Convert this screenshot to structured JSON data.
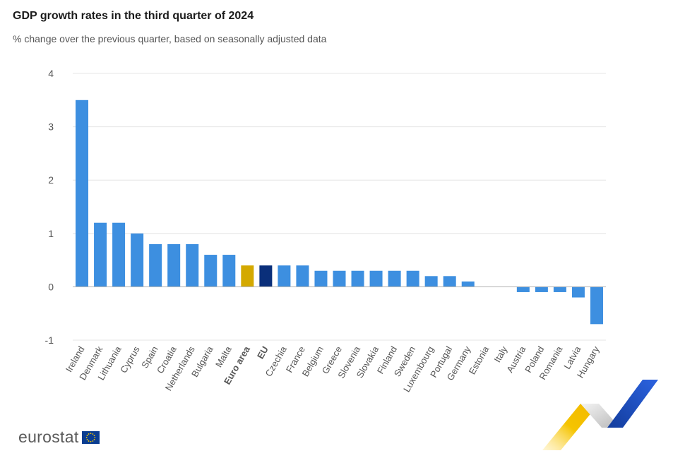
{
  "header": {
    "title": "GDP growth rates in the third quarter of 2024",
    "subtitle": "% change over the previous quarter, based on seasonally adjusted data"
  },
  "logo": {
    "text": "eurostat",
    "icon": "eu-flag-icon"
  },
  "colors": {
    "country": "#3d8fe0",
    "euro_area": "#d4a900",
    "eu": "#0a2f7a",
    "grid": "#e6e6e6",
    "axis_text": "#555555"
  },
  "chart_data": {
    "type": "bar",
    "title": "GDP growth rates in the third quarter of 2024",
    "subtitle": "% change over the previous quarter, based on seasonally adjusted data",
    "xlabel": "",
    "ylabel": "",
    "ylim": [
      -1,
      4
    ],
    "yticks": [
      -1,
      0,
      1,
      2,
      3,
      4
    ],
    "grid": true,
    "categories": [
      "Ireland",
      "Denmark",
      "Lithuania",
      "Cyprus",
      "Spain",
      "Croatia",
      "Netherlands",
      "Bulgaria",
      "Malta",
      "Euro area",
      "EU",
      "Czechia",
      "France",
      "Belgium",
      "Greece",
      "Slovenia",
      "Slovakia",
      "Finland",
      "Sweden",
      "Luxembourg",
      "Portugal",
      "Germany",
      "Estonia",
      "Italy",
      "Austria",
      "Poland",
      "Romania",
      "Latvia",
      "Hungary"
    ],
    "values": [
      3.5,
      1.2,
      1.2,
      1.0,
      0.8,
      0.8,
      0.8,
      0.6,
      0.6,
      0.4,
      0.4,
      0.4,
      0.4,
      0.3,
      0.3,
      0.3,
      0.3,
      0.3,
      0.3,
      0.2,
      0.2,
      0.1,
      0.0,
      0.0,
      -0.1,
      -0.1,
      -0.1,
      -0.2,
      -0.7
    ],
    "highlight": {
      "Euro area": "euro_area",
      "EU": "eu"
    }
  }
}
